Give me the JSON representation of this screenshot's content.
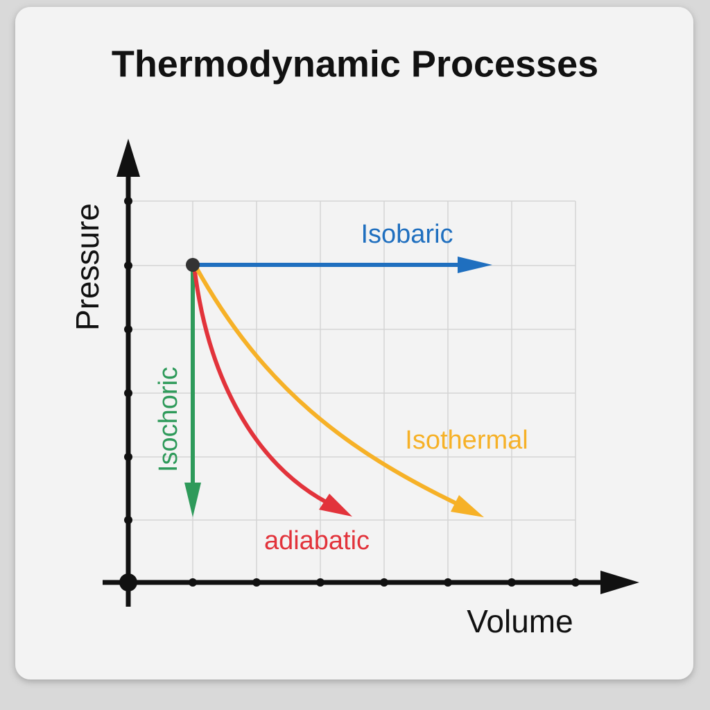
{
  "title": "Thermodynamic Processes",
  "axes": {
    "x": "Volume",
    "y": "Pressure"
  },
  "processes": [
    {
      "label": "Isobaric"
    },
    {
      "label": "Isochoric"
    },
    {
      "label": "adiabatic"
    },
    {
      "label": "Isothermal"
    }
  ]
}
